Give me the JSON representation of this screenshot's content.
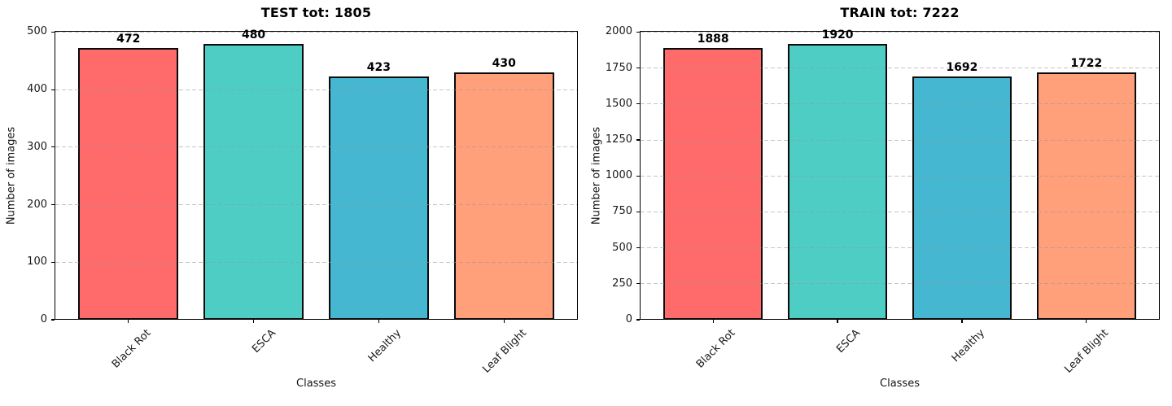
{
  "chart_data": [
    {
      "type": "bar",
      "title": "TEST tot: 1805",
      "total": 1805,
      "xlabel": "Classes",
      "ylabel": "Number of images",
      "categories": [
        "Black Rot",
        "ESCA",
        "Healthy",
        "Leaf Blight"
      ],
      "values": [
        472,
        480,
        423,
        430
      ],
      "bar_colors": [
        "#FF6B6B",
        "#4ECDC4",
        "#45B7D1",
        "#FFA07A"
      ],
      "bar_edge_color": "#0a0a0a",
      "yticks": [
        0,
        100,
        200,
        300,
        400,
        500
      ],
      "ylim": [
        0,
        502
      ],
      "grid": "horizontal-dashed",
      "legend_position": "none"
    },
    {
      "type": "bar",
      "title": "TRAIN tot: 7222",
      "total": 7222,
      "xlabel": "Classes",
      "ylabel": "Number of images",
      "categories": [
        "Black Rot",
        "ESCA",
        "Healthy",
        "Leaf Blight"
      ],
      "values": [
        1888,
        1920,
        1692,
        1722
      ],
      "bar_colors": [
        "#FF6B6B",
        "#4ECDC4",
        "#45B7D1",
        "#FFA07A"
      ],
      "bar_edge_color": "#0a0a0a",
      "yticks": [
        0,
        250,
        500,
        750,
        1000,
        1250,
        1500,
        1750,
        2000
      ],
      "ylim": [
        0,
        2008
      ],
      "grid": "horizontal-dashed",
      "legend_position": "none"
    }
  ]
}
